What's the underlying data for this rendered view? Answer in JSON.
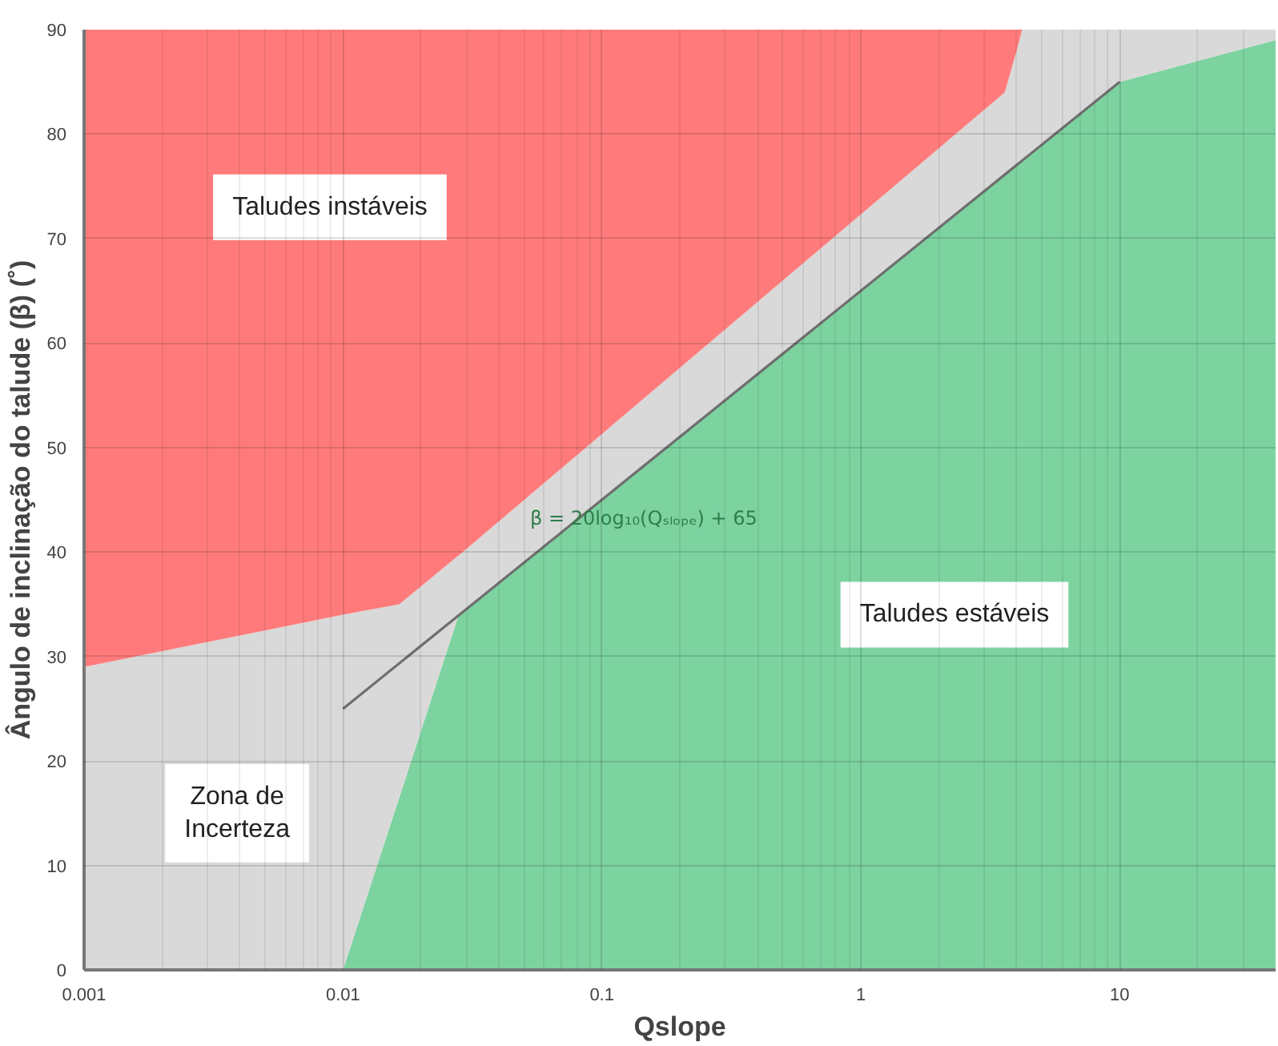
{
  "chart_data": {
    "type": "area",
    "stacked": true,
    "xlabel": "Qslope",
    "ylabel": "Ângulo de inclinação do talude (β) (˚)",
    "log": "x",
    "grid": true,
    "xlim": [
      0.001,
      40
    ],
    "xticks": [
      0.001,
      0.01,
      0.1,
      1,
      10
    ],
    "ylim": [
      0,
      90
    ],
    "yticks": [
      0,
      10,
      20,
      30,
      40,
      50,
      60,
      70,
      80,
      90
    ],
    "x": [
      0.001,
      0.01,
      0.0165,
      0.028,
      0.029,
      3.6,
      4.0,
      4.2,
      10,
      40
    ],
    "series": [
      {
        "color": "#7dd3a0",
        "values": [
          0,
          0,
          16.5,
          34,
          34.3,
          76.1,
          77,
          77.5,
          85,
          89
        ]
      },
      {
        "color": "#d9d9d9",
        "values": [
          29,
          34,
          18.5,
          5.7,
          5.7,
          7.9,
          11,
          12.5,
          5,
          1
        ]
      },
      {
        "color": "#ff7b7b",
        "values": [
          61,
          56,
          55,
          50.3,
          50,
          6,
          2,
          0,
          0,
          0
        ]
      },
      {
        "type": "line",
        "color": "#6e6e6e",
        "x": [
          0.01,
          10
        ],
        "values": [
          25,
          85
        ]
      }
    ],
    "annotations": [
      "Taludes instáveis",
      "Zona de\nIncerteza",
      "Taludes estáveis",
      "β = 20log₁₀(Qₛₗₒₚₑ) + 65"
    ]
  }
}
